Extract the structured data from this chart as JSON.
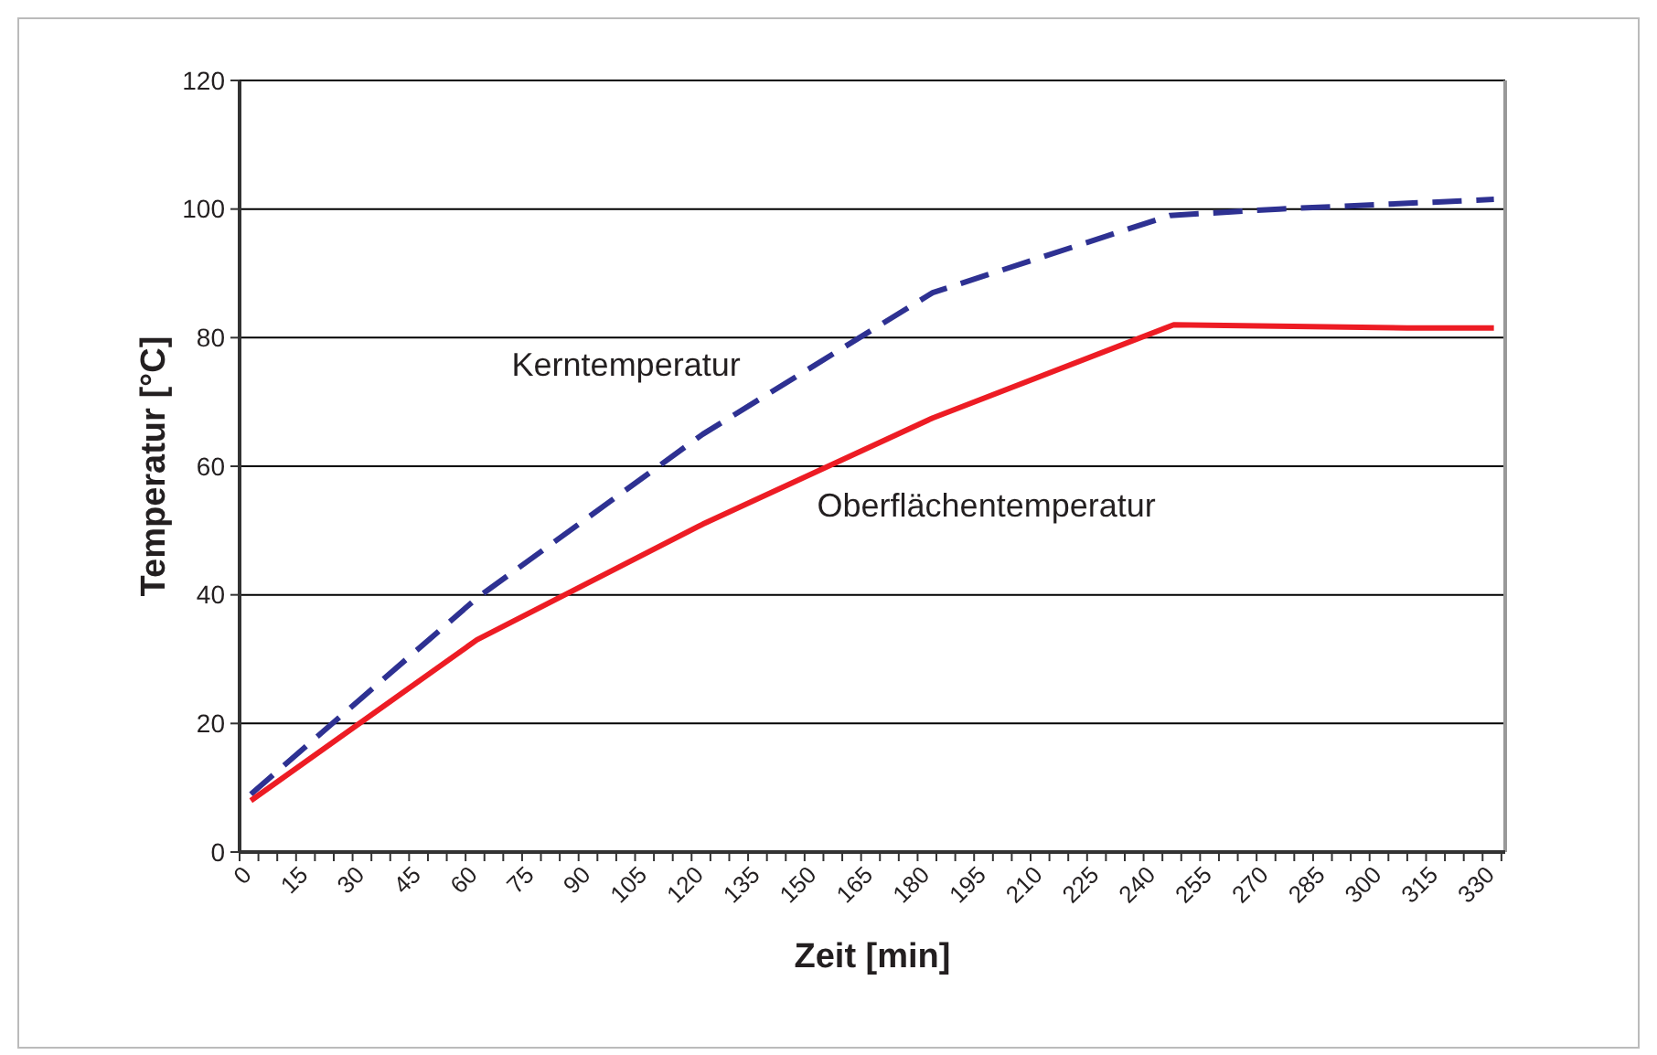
{
  "chart_data": {
    "type": "line",
    "xlabel": "Zeit [min]",
    "ylabel": "Temperatur [°C]",
    "xlim": [
      0,
      336
    ],
    "xticks": [
      0,
      {
        "value": 5,
        "label": null
      },
      {
        "value": 10,
        "label": null
      },
      15,
      {
        "value": 20,
        "label": null
      },
      {
        "value": 25,
        "label": null
      },
      30,
      {
        "value": 35,
        "label": null
      },
      {
        "value": 40,
        "label": null
      },
      45,
      {
        "value": 50,
        "label": null
      },
      {
        "value": 55,
        "label": null
      },
      60,
      {
        "value": 65,
        "label": null
      },
      {
        "value": 70,
        "label": null
      },
      75,
      {
        "value": 80,
        "label": null
      },
      {
        "value": 85,
        "label": null
      },
      90,
      {
        "value": 95,
        "label": null
      },
      {
        "value": 100,
        "label": null
      },
      105,
      {
        "value": 110,
        "label": null
      },
      {
        "value": 115,
        "label": null
      },
      120,
      {
        "value": 125,
        "label": null
      },
      {
        "value": 130,
        "label": null
      },
      135,
      {
        "value": 140,
        "label": null
      },
      {
        "value": 145,
        "label": null
      },
      150,
      {
        "value": 155,
        "label": null
      },
      {
        "value": 160,
        "label": null
      },
      165,
      {
        "value": 170,
        "label": null
      },
      {
        "value": 175,
        "label": null
      },
      180,
      {
        "value": 185,
        "label": null
      },
      {
        "value": 190,
        "label": null
      },
      195,
      {
        "value": 200,
        "label": null
      },
      {
        "value": 205,
        "label": null
      },
      210,
      {
        "value": 215,
        "label": null
      },
      {
        "value": 220,
        "label": null
      },
      225,
      {
        "value": 230,
        "label": null
      },
      {
        "value": 235,
        "label": null
      },
      240,
      {
        "value": 245,
        "label": null
      },
      {
        "value": 250,
        "label": null
      },
      255,
      {
        "value": 260,
        "label": null
      },
      {
        "value": 265,
        "label": null
      },
      270,
      {
        "value": 275,
        "label": null
      },
      {
        "value": 280,
        "label": null
      },
      285,
      {
        "value": 290,
        "label": null
      },
      {
        "value": 295,
        "label": null
      },
      300,
      {
        "value": 305,
        "label": null
      },
      {
        "value": 310,
        "label": null
      },
      315,
      {
        "value": 320,
        "label": null
      },
      {
        "value": 325,
        "label": null
      },
      330,
      {
        "value": 335,
        "label": null
      }
    ],
    "ylim": [
      0,
      120
    ],
    "yticks": [
      0,
      20,
      40,
      60,
      80,
      100,
      120
    ],
    "grid": "y",
    "series": [
      {
        "name": "Kerntemperatur",
        "color": "#2e3192",
        "line_style": "dashed",
        "x": [
          3,
          63,
          123,
          184,
          247,
          276,
          333
        ],
        "values": [
          9,
          39.5,
          65,
          87,
          99,
          100,
          101.5
        ]
      },
      {
        "name": "Oberflächentemperatur",
        "color": "#ed1c24",
        "line_style": "solid",
        "x": [
          3,
          63,
          123,
          184,
          248,
          310,
          333
        ],
        "values": [
          8,
          33,
          51,
          67.5,
          82,
          81.5,
          81.5
        ]
      }
    ]
  }
}
